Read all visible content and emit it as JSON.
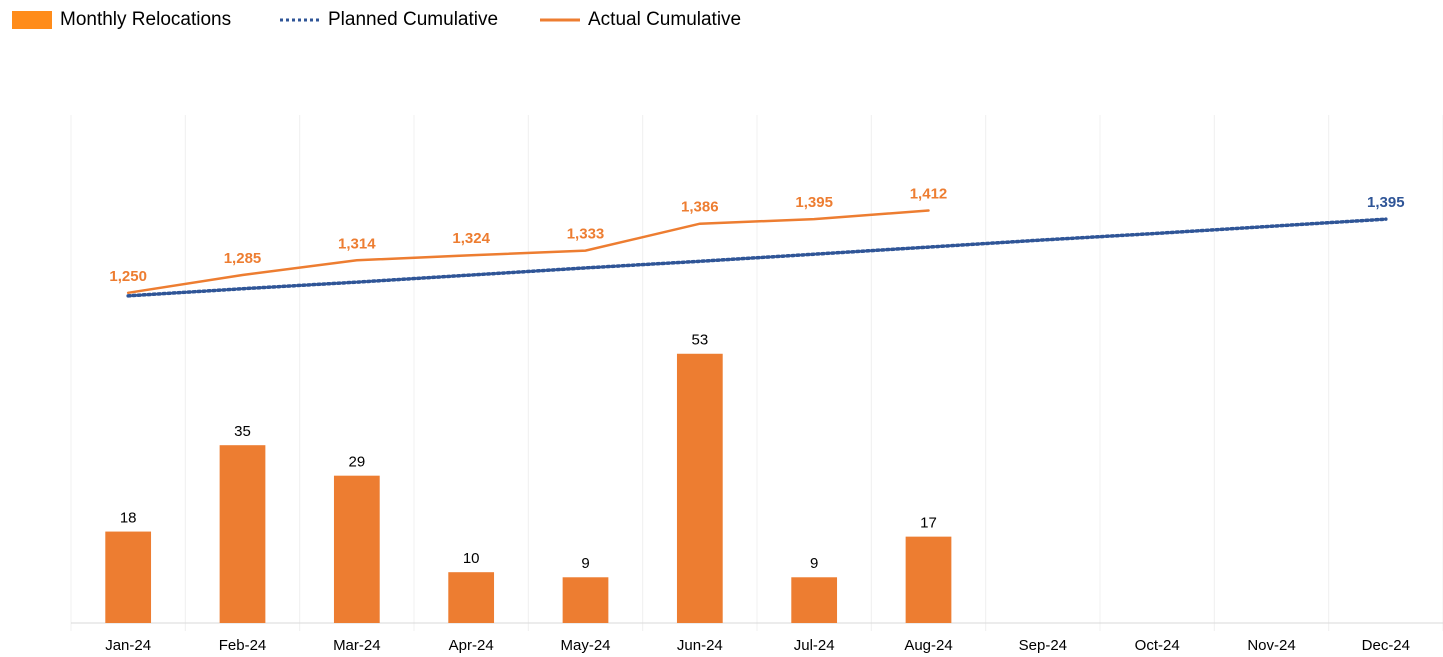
{
  "chart_data": {
    "type": "combo",
    "categories": [
      "Jan-24",
      "Feb-24",
      "Mar-24",
      "Apr-24",
      "May-24",
      "Jun-24",
      "Jul-24",
      "Aug-24",
      "Sep-24",
      "Oct-24",
      "Nov-24",
      "Dec-24"
    ],
    "series": [
      {
        "name": "Monthly Relocations",
        "type": "bar",
        "color": "#ed7d31",
        "legend_color": "#ff8c1a",
        "values": [
          18,
          35,
          29,
          10,
          9,
          53,
          9,
          17,
          null,
          null,
          null,
          null
        ]
      },
      {
        "name": "Planned Cumulative",
        "type": "line",
        "axis": "y2",
        "color": "#2f5597",
        "dash": "dotted",
        "values": [
          1244,
          1258,
          1271,
          1285,
          1299,
          1312,
          1326,
          1340,
          1354,
          1367,
          1381,
          1395
        ],
        "value_labels": [
          null,
          null,
          null,
          null,
          null,
          null,
          null,
          null,
          null,
          null,
          null,
          "1,395"
        ]
      },
      {
        "name": "Actual Cumulative",
        "type": "line",
        "axis": "y2",
        "color": "#ed7d31",
        "values": [
          1250,
          1285,
          1314,
          1324,
          1333,
          1386,
          1395,
          1412,
          null,
          null,
          null,
          null
        ],
        "value_labels": [
          "1,250",
          "1,285",
          "1,314",
          "1,324",
          "1,333",
          "1,386",
          "1,395",
          "1,412",
          null,
          null,
          null,
          null
        ]
      }
    ],
    "ylim": [
      0,
      100
    ],
    "y2lim": [
      600,
      1600
    ],
    "x_grid": true,
    "legend": "top-left"
  }
}
